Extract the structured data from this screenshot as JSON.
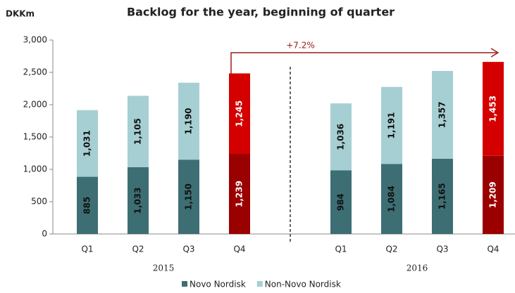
{
  "chart_data": {
    "type": "stacked_bar",
    "title": "Backlog for the year, beginning of quarter",
    "y_unit": "DKKm",
    "categories": [
      "Q1",
      "Q2",
      "Q3",
      "Q4",
      "Q1",
      "Q2",
      "Q3",
      "Q4"
    ],
    "group_labels": [
      "2015",
      "2016"
    ],
    "series": [
      {
        "name": "Novo Nordisk",
        "color": "#3d6e74",
        "colors": [
          "#3d6e74",
          "#3d6e74",
          "#3d6e74",
          "#9b0000",
          "#3d6e74",
          "#3d6e74",
          "#3d6e74",
          "#9b0000"
        ],
        "values": [
          885,
          1033,
          1150,
          1239,
          984,
          1084,
          1165,
          1209
        ],
        "value_labels": [
          "885",
          "1,033",
          "1,150",
          "1,239",
          "984",
          "1,084",
          "1,165",
          "1,209"
        ]
      },
      {
        "name": "Non-Novo Nordisk",
        "color": "#a6cfd3",
        "colors": [
          "#a6cfd3",
          "#a6cfd3",
          "#a6cfd3",
          "#d40000",
          "#a6cfd3",
          "#a6cfd3",
          "#a6cfd3",
          "#d40000"
        ],
        "values": [
          1031,
          1105,
          1190,
          1245,
          1036,
          1191,
          1357,
          1453
        ],
        "value_labels": [
          "1,031",
          "1,105",
          "1,190",
          "1,245",
          "1,036",
          "1,191",
          "1,357",
          "1,453"
        ]
      }
    ],
    "ylim": [
      0,
      3000
    ],
    "yticks": [
      0,
      500,
      {
        "value": 1000,
        "label": "1,000"
      },
      {
        "value": 1500,
        "label": "1,500"
      },
      {
        "value": 2000,
        "label": "2,000"
      },
      {
        "value": 2500,
        "label": "2,500"
      },
      {
        "value": 3000,
        "label": "3,000"
      }
    ],
    "annotation": "+7.2%",
    "annotation_color": "#9b1b1b",
    "legend": "bottom"
  }
}
